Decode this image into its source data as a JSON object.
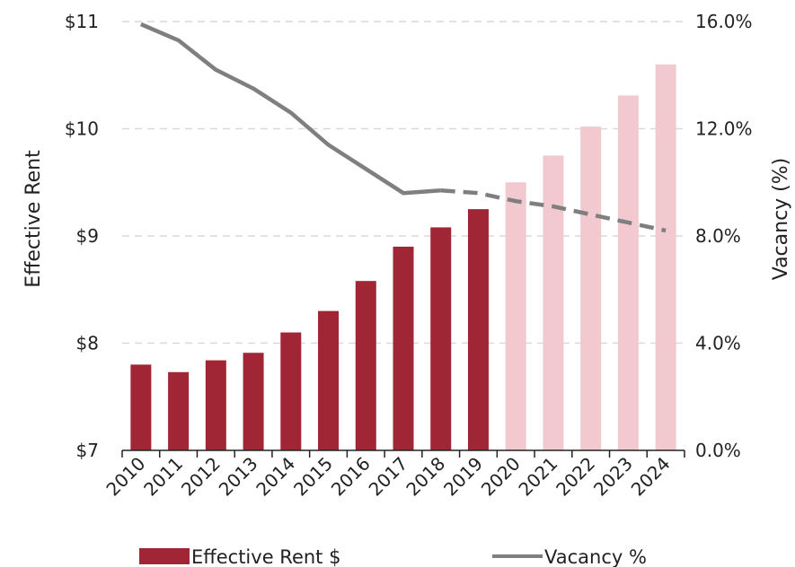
{
  "chart_data": {
    "type": "bar",
    "categories": [
      "2010",
      "2011",
      "2012",
      "2013",
      "2014",
      "2015",
      "2016",
      "2017",
      "2018",
      "2019",
      "2020",
      "2021",
      "2022",
      "2023",
      "2024"
    ],
    "series": [
      {
        "name": "Effective Rent $",
        "type": "bar",
        "axis": "left",
        "values": [
          7.8,
          7.73,
          7.84,
          7.91,
          8.1,
          8.3,
          8.58,
          8.9,
          9.08,
          9.25,
          9.5,
          9.75,
          10.02,
          10.31,
          10.6
        ],
        "color": "#a02636",
        "forecast_color": "#f2c9cf",
        "forecast_from": "2020"
      },
      {
        "name": "Vacancy %",
        "type": "line",
        "axis": "right",
        "values": [
          15.9,
          15.3,
          14.2,
          13.5,
          12.6,
          11.4,
          10.5,
          9.6,
          9.7,
          9.6,
          9.3,
          9.1,
          8.8,
          8.5,
          8.2
        ],
        "color": "#7f7f7f",
        "dashed_from": "2018"
      }
    ],
    "ylabel": "Effective Rent",
    "y2label": "Vacancy (%)",
    "ylim": [
      7,
      11
    ],
    "y2lim": [
      0,
      16
    ],
    "yticks": [
      "$7",
      "$8",
      "$9",
      "$10",
      "$11"
    ],
    "y2ticks": [
      "0.0%",
      "4.0%",
      "8.0%",
      "12.0%",
      "16.0%"
    ],
    "grid": true,
    "legend_position": "bottom"
  }
}
